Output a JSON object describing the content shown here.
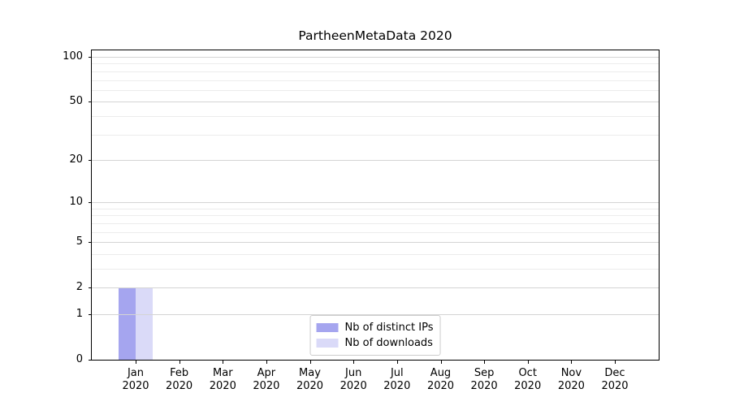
{
  "title": "PartheenMetaData 2020",
  "chart_data": {
    "type": "bar",
    "title": "PartheenMetaData 2020",
    "x_tick_months": [
      "Jan",
      "Feb",
      "Mar",
      "Apr",
      "May",
      "Jun",
      "Jul",
      "Aug",
      "Sep",
      "Oct",
      "Nov",
      "Dec"
    ],
    "x_tick_year": "2020",
    "series": [
      {
        "name": "Nb of distinct IPs",
        "color": "#a5a5ef",
        "values": [
          2,
          0,
          0,
          0,
          0,
          0,
          0,
          0,
          0,
          0,
          0,
          0
        ]
      },
      {
        "name": "Nb of downloads",
        "color": "#dadaf8",
        "values": [
          2,
          0,
          0,
          0,
          0,
          0,
          0,
          0,
          0,
          0,
          0,
          0
        ]
      }
    ],
    "yscale": "log1p",
    "ylim": [
      0,
      112
    ],
    "y_major_ticks": [
      0,
      1,
      2,
      5,
      10,
      20,
      50,
      100
    ],
    "y_minor_gridlines": [
      3,
      4,
      6,
      7,
      8,
      9,
      30,
      40,
      60,
      70,
      80,
      90
    ],
    "grid": true,
    "legend_position": "lower center"
  },
  "colors": {
    "axis": "#000000",
    "grid_major": "#d4d4d4",
    "grid_minor": "#ececec",
    "background": "#ffffff",
    "text": "#000000"
  }
}
